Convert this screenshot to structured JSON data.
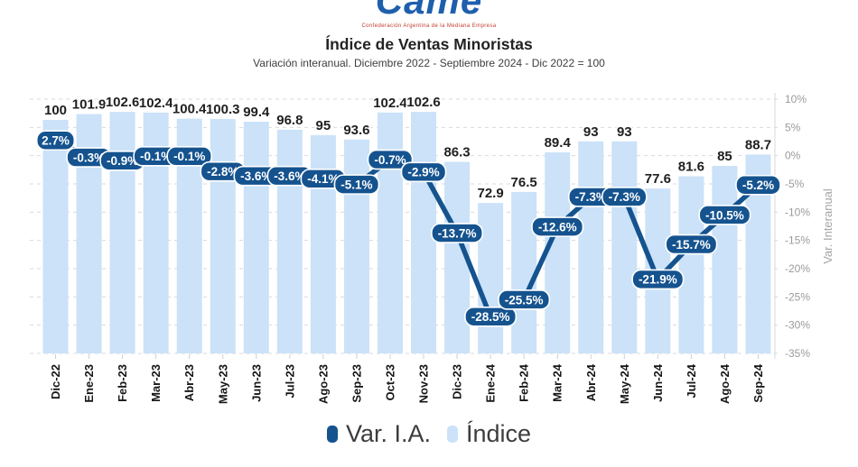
{
  "logo": {
    "brand": "Came",
    "tagline": "Confederación Argentina de la Mediana Empresa"
  },
  "header": {
    "title": "Índice de Ventas Minoristas",
    "subtitle": "Variación interanual. Diciembre 2022 - Septiembre 2024 - Dic 2022 = 100"
  },
  "chart_data": {
    "type": "bar+line",
    "categories": [
      "Dic-22",
      "Ene-23",
      "Feb-23",
      "Mar-23",
      "Abr-23",
      "May-23",
      "Jun-23",
      "Jul-23",
      "Ago-23",
      "Sep-23",
      "Oct-23",
      "Nov-23",
      "Dic-23",
      "Ene-24",
      "Feb-24",
      "Mar-24",
      "Abr-24",
      "May-24",
      "Jun-24",
      "Jul-24",
      "Ago-24",
      "Sep-24"
    ],
    "series": [
      {
        "name": "Índice",
        "type": "bar",
        "color": "#cbe2f8",
        "values": [
          100,
          101.9,
          102.6,
          102.4,
          100.4,
          100.3,
          99.4,
          96.8,
          95,
          93.6,
          102.4,
          102.6,
          86.3,
          72.9,
          76.5,
          89.4,
          93,
          93,
          77.6,
          81.6,
          85,
          88.7
        ],
        "value_labels": [
          "100",
          "101.9",
          "102.6",
          "102.4",
          "100.4",
          "100.3",
          "99.4",
          "96.8",
          "95",
          "93.6",
          "102.4",
          "102.6",
          "86.3",
          "72.9",
          "76.5",
          "89.4",
          "93",
          "93",
          "77.6",
          "81.6",
          "85",
          "88.7"
        ]
      },
      {
        "name": "Var. I.A.",
        "type": "line",
        "color": "#15538f",
        "values": [
          2.7,
          -0.3,
          -0.9,
          -0.1,
          -0.1,
          -2.8,
          -3.6,
          -3.6,
          -4.1,
          -5.1,
          -0.7,
          -2.9,
          -13.7,
          -28.5,
          -25.5,
          -12.6,
          -7.3,
          -7.3,
          -21.9,
          -15.7,
          -10.5,
          -5.2
        ],
        "value_labels": [
          "2.7%",
          "-0.3%",
          "-0.9%",
          "-0.1%",
          "-0.1%",
          "-2.8%",
          "-3.6%",
          "-3.6%",
          "-4.1%",
          "-5.1%",
          "-0.7%",
          "-2.9%",
          "-13.7%",
          "-28.5%",
          "-25.5%",
          "-12.6%",
          "-7.3%",
          "-7.3%",
          "-21.9%",
          "-15.7%",
          "-10.5%",
          "-5.2%"
        ]
      }
    ],
    "right_axis": {
      "label": "Var. Interanual",
      "ticks": [
        "10%",
        "5%",
        "0%",
        "-5%",
        "-10%",
        "-15%",
        "-20%",
        "-25%",
        "-30%",
        "-35%"
      ],
      "max": 10,
      "min": -35,
      "grid": "dashed"
    },
    "legend": [
      {
        "label": "Var. I.A.",
        "color": "#15538f"
      },
      {
        "label": "Índice",
        "color": "#cbe2f8"
      }
    ]
  }
}
